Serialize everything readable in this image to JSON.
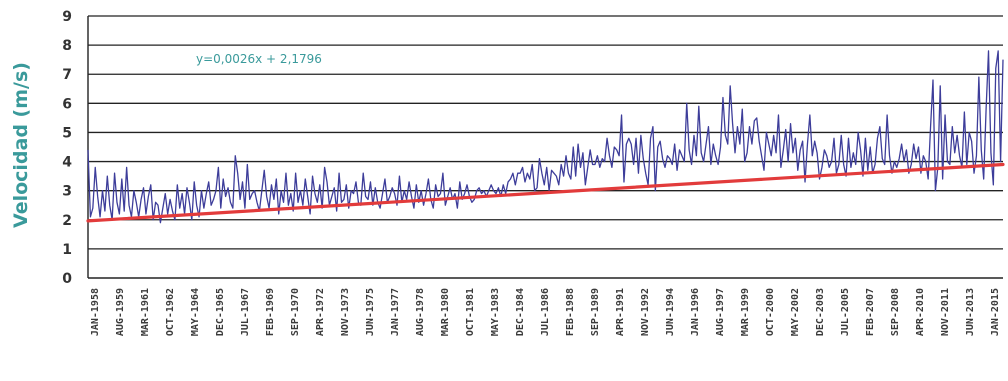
{
  "chart_data": {
    "type": "line",
    "title": "",
    "ylabel": "Velocidad (m/s)",
    "ylim": [
      0,
      9
    ],
    "yticks": [
      0,
      1,
      2,
      3,
      4,
      5,
      6,
      7,
      8,
      9
    ],
    "xtick_labels": [
      "JAN-1958",
      "AUG-1959",
      "MAR-1961",
      "OCT-1962",
      "MAY-1964",
      "DEC-1965",
      "JUL-1967",
      "FEB-1969",
      "SEP-1970",
      "APR-1972",
      "NOV-1973",
      "JUN-1975",
      "JAN-1977",
      "AUG-1978",
      "MAR-1980",
      "OCT-1981",
      "MAY-1983",
      "DEC-1984",
      "JUL-1986",
      "FEB-1988",
      "SEP-1989",
      "APR-1991",
      "NOV-1992",
      "JUN-1994",
      "JAN-1996",
      "AUG-1997",
      "MAR-1999",
      "OCT-2000",
      "MAY-2002",
      "DEC-2003",
      "JUL-2005",
      "FEB-2007",
      "SEP-2008",
      "APR-2010",
      "NOV-2011",
      "JUN-2013",
      "JAN-2015"
    ],
    "grid": true,
    "trendline": {
      "equation_label": "y=0,0026x + 2,1796",
      "slope": 0.0026,
      "intercept": 2.1796,
      "color": "#e23b3b"
    },
    "series": [
      {
        "color": "#3d3d9a",
        "values": [
          4.4,
          2.1,
          2.4,
          3.8,
          2.8,
          2.1,
          3.0,
          2.3,
          3.5,
          2.5,
          2.0,
          3.6,
          2.6,
          2.2,
          3.4,
          2.3,
          3.8,
          2.5,
          2.1,
          3.0,
          2.6,
          2.1,
          2.7,
          3.1,
          2.2,
          2.8,
          3.2,
          2.0,
          2.6,
          2.5,
          1.9,
          2.4,
          2.9,
          2.2,
          2.7,
          2.3,
          2.0,
          3.2,
          2.4,
          2.9,
          2.2,
          3.1,
          2.6,
          2.0,
          3.3,
          2.5,
          2.1,
          3.0,
          2.4,
          2.9,
          3.3,
          2.5,
          2.7,
          3.0,
          3.8,
          2.4,
          3.4,
          2.8,
          3.1,
          2.6,
          2.4,
          4.2,
          3.6,
          2.7,
          3.3,
          2.4,
          3.9,
          2.7,
          2.9,
          3.0,
          2.6,
          2.3,
          3.0,
          3.7,
          2.8,
          2.4,
          3.2,
          2.7,
          3.4,
          2.2,
          3.0,
          2.6,
          3.6,
          2.5,
          2.9,
          2.3,
          3.6,
          2.6,
          3.0,
          2.5,
          3.4,
          2.8,
          2.2,
          3.5,
          2.9,
          2.6,
          3.2,
          2.4,
          3.8,
          3.3,
          2.5,
          2.8,
          3.1,
          2.3,
          3.6,
          2.6,
          2.7,
          3.2,
          2.4,
          3.0,
          2.9,
          3.3,
          2.6,
          2.5,
          3.6,
          2.8,
          2.7,
          3.3,
          2.5,
          3.1,
          2.6,
          2.4,
          2.9,
          3.4,
          2.6,
          2.8,
          3.1,
          2.9,
          2.5,
          3.5,
          2.6,
          3.0,
          2.7,
          3.3,
          2.8,
          2.4,
          3.2,
          2.6,
          3.0,
          2.5,
          2.9,
          3.4,
          2.7,
          2.4,
          3.2,
          2.8,
          2.9,
          3.6,
          2.5,
          2.8,
          3.1,
          2.7,
          2.9,
          2.4,
          3.3,
          2.7,
          2.9,
          3.2,
          2.8,
          2.6,
          2.7,
          3.0,
          3.1,
          2.9,
          3.0,
          2.8,
          3.0,
          3.2,
          3.0,
          2.9,
          3.1,
          2.8,
          3.2,
          2.9,
          3.3,
          3.4,
          3.6,
          3.2,
          3.6,
          3.6,
          3.8,
          3.3,
          3.6,
          3.4,
          3.9,
          3.0,
          3.1,
          4.1,
          3.6,
          3.2,
          3.8,
          3.0,
          3.7,
          3.6,
          3.5,
          3.2,
          3.9,
          3.5,
          4.2,
          3.6,
          3.4,
          4.5,
          3.5,
          4.6,
          3.8,
          4.3,
          3.2,
          3.8,
          4.4,
          3.9,
          3.9,
          4.2,
          3.8,
          4.1,
          4.0,
          4.8,
          4.2,
          3.8,
          4.5,
          4.4,
          4.2,
          5.6,
          3.3,
          4.6,
          4.8,
          4.6,
          3.9,
          4.8,
          3.6,
          4.9,
          4.1,
          3.6,
          3.2,
          4.8,
          5.2,
          3.0,
          4.5,
          4.7,
          4.1,
          3.8,
          4.2,
          4.1,
          3.9,
          4.6,
          3.7,
          4.4,
          4.2,
          4.0,
          6.0,
          4.4,
          3.9,
          4.9,
          4.2,
          5.9,
          4.3,
          4.0,
          4.6,
          5.2,
          3.9,
          4.6,
          4.2,
          3.9,
          4.5,
          6.2,
          4.9,
          4.6,
          6.6,
          5.3,
          4.3,
          5.2,
          4.6,
          5.8,
          4.0,
          4.3,
          5.2,
          4.6,
          5.4,
          5.5,
          4.7,
          4.2,
          3.7,
          5.0,
          4.6,
          4.2,
          4.9,
          4.3,
          5.6,
          3.8,
          4.4,
          5.1,
          4.0,
          5.3,
          4.3,
          4.8,
          3.7,
          4.4,
          4.7,
          3.3,
          4.6,
          5.6,
          4.2,
          4.7,
          4.3,
          3.4,
          3.8,
          4.4,
          4.2,
          3.8,
          4.0,
          4.8,
          3.6,
          3.9,
          4.9,
          3.9,
          3.5,
          4.8,
          3.8,
          4.3,
          3.9,
          5.0,
          4.4,
          3.5,
          4.8,
          3.7,
          4.5,
          3.6,
          3.9,
          4.8,
          5.2,
          4.1,
          3.9,
          5.6,
          4.2,
          3.6,
          4.0,
          3.8,
          4.1,
          4.6,
          4.0,
          4.4,
          3.6,
          3.9,
          4.6,
          4.1,
          4.5,
          3.6,
          4.2,
          4.0,
          3.4,
          5.2,
          6.8,
          3.0,
          3.8,
          6.6,
          3.4,
          5.6,
          4.0,
          3.9,
          5.2,
          4.3,
          4.9,
          4.2,
          3.8,
          5.7,
          3.9,
          5.0,
          4.7,
          3.6,
          4.2,
          6.9,
          4.4,
          3.4,
          5.8,
          7.8,
          4.3,
          3.2,
          7.2,
          7.8,
          4.0,
          7.5
        ]
      }
    ]
  }
}
